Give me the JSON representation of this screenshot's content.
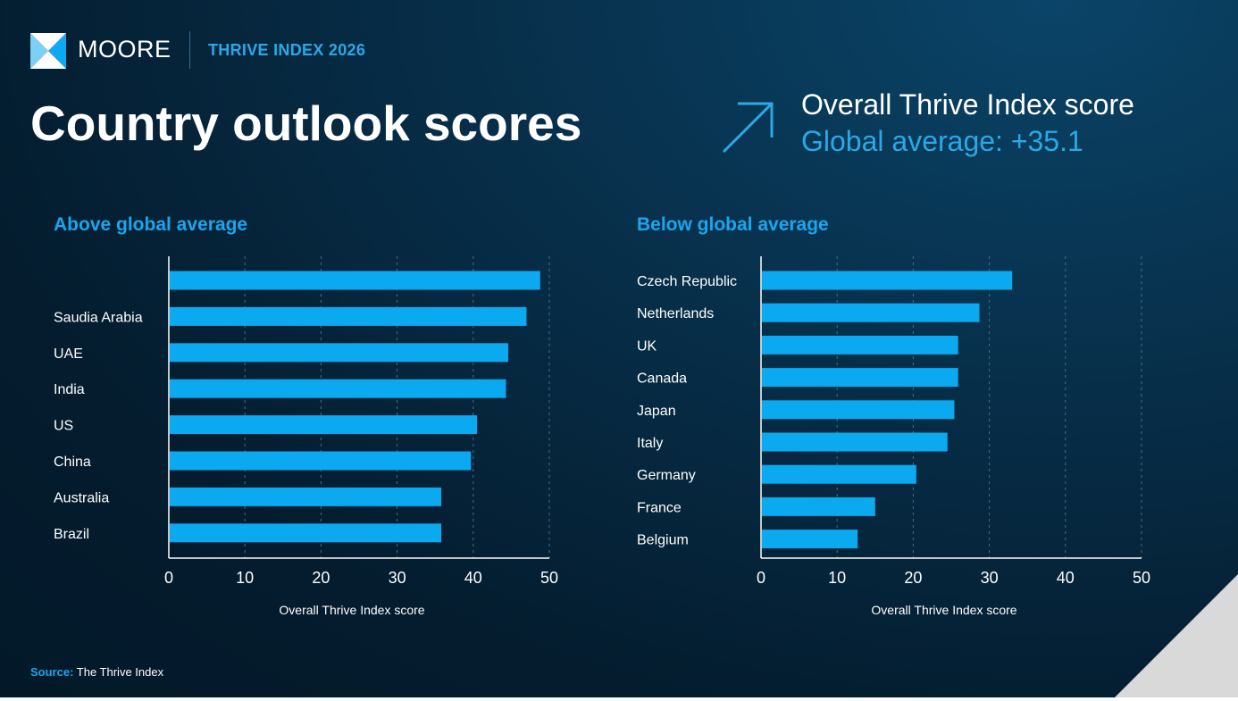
{
  "header": {
    "brand": "MOORE",
    "sub_brand": "THRIVE INDEX 2026",
    "title": "Country outlook scores",
    "overall_label": "Overall Thrive Index score",
    "global_average": "Global average: +35.1"
  },
  "colors": {
    "bar": "#0aa9f0",
    "accent": "#1aa6ef",
    "background": "#041c2e"
  },
  "icons": {
    "logo": "moore-logo-icon",
    "arrow": "arrow-up-right-icon"
  },
  "chart_data": [
    {
      "type": "bar",
      "orientation": "horizontal",
      "title": "Above global average",
      "categories": [
        "",
        "Saudia Arabia",
        "UAE",
        "India",
        "US",
        "China",
        "Australia",
        "Brazil"
      ],
      "values": [
        48.8,
        47.0,
        44.6,
        44.3,
        40.5,
        39.7,
        35.8,
        35.8
      ],
      "xlabel": "Overall Thrive Index score",
      "xlim": [
        0,
        50
      ],
      "xticks": [
        "0",
        "10",
        "20",
        "30",
        "40",
        "50"
      ],
      "grid": "vertical dashed"
    },
    {
      "type": "bar",
      "orientation": "horizontal",
      "title": "Below global average",
      "categories": [
        "Czech Republic",
        "Netherlands",
        "UK",
        "Canada",
        "Japan",
        "Italy",
        "Germany",
        "France",
        "Belgium"
      ],
      "values": [
        33.0,
        28.7,
        25.9,
        25.9,
        25.4,
        24.5,
        20.4,
        15.0,
        12.7
      ],
      "xlabel": "Overall Thrive Index score",
      "xlim": [
        0,
        50
      ],
      "xticks": [
        "0",
        "10",
        "20",
        "30",
        "40",
        "50"
      ],
      "grid": "vertical dashed"
    }
  ],
  "footer": {
    "source_label": "Source:",
    "source_text": " The Thrive Index"
  }
}
